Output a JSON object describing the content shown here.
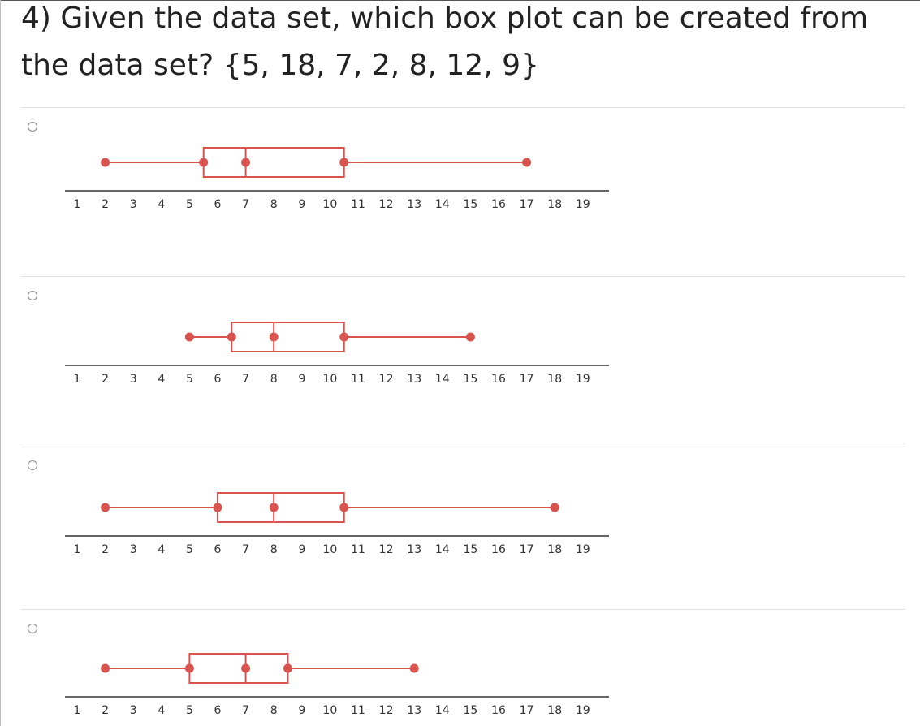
{
  "question": "4) Given the data set, which box plot can be created from the data set? {5, 18, 7, 2, 8, 12, 9}",
  "number_line": {
    "ticks": [
      "1",
      "2",
      "3",
      "4",
      "5",
      "6",
      "7",
      "8",
      "9",
      "10",
      "11",
      "12",
      "13",
      "14",
      "15",
      "16",
      "17",
      "18",
      "19"
    ]
  },
  "colors": {
    "plot": "#d9534f",
    "axis": "#666666",
    "radio": "#8a8a8a",
    "separator": "#e3e3e3"
  },
  "options": [
    {
      "selected": false,
      "box_plot": {
        "min": 2,
        "q1": 5.5,
        "median": 7,
        "q3": 10.5,
        "max": 17
      }
    },
    {
      "selected": false,
      "box_plot": {
        "min": 5,
        "q1": 6.5,
        "median": 8,
        "q3": 10.5,
        "max": 15
      }
    },
    {
      "selected": false,
      "box_plot": {
        "min": 2,
        "q1": 6,
        "median": 8,
        "q3": 10.5,
        "max": 18
      }
    },
    {
      "selected": false,
      "box_plot": {
        "min": 2,
        "q1": 5,
        "median": 7,
        "q3": 8.5,
        "max": 13
      }
    }
  ],
  "chart_data": [
    {
      "type": "box",
      "min": 2,
      "q1": 5.5,
      "median": 7,
      "q3": 10.5,
      "max": 17,
      "xlim": [
        1,
        19
      ]
    },
    {
      "type": "box",
      "min": 5,
      "q1": 6.5,
      "median": 8,
      "q3": 10.5,
      "max": 15,
      "xlim": [
        1,
        19
      ]
    },
    {
      "type": "box",
      "min": 2,
      "q1": 6,
      "median": 8,
      "q3": 10.5,
      "max": 18,
      "xlim": [
        1,
        19
      ]
    },
    {
      "type": "box",
      "min": 2,
      "q1": 5,
      "median": 7,
      "q3": 8.5,
      "max": 13,
      "xlim": [
        1,
        19
      ]
    }
  ]
}
